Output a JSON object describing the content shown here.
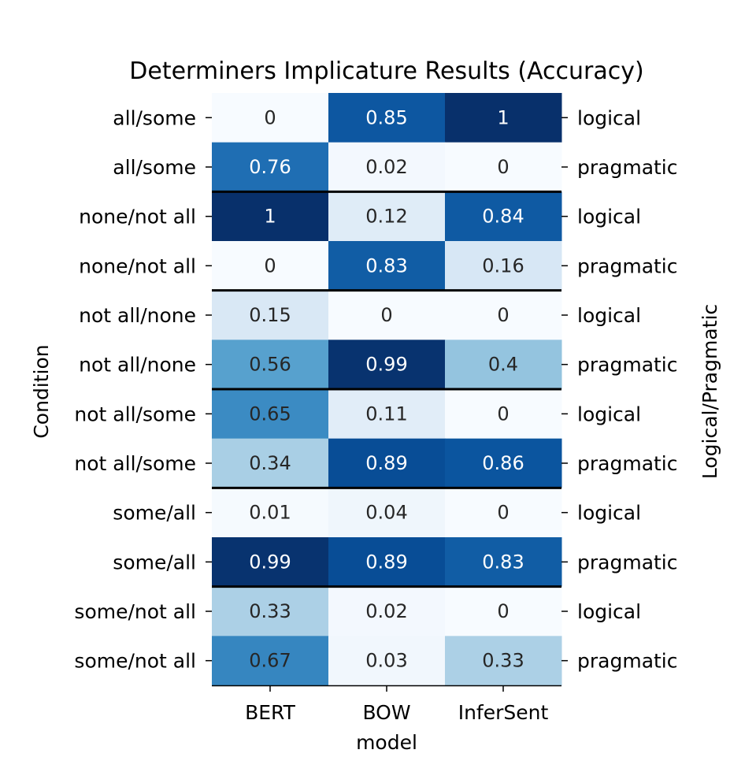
{
  "chart_data": {
    "type": "heatmap",
    "title": "Determiners Implicature Results (Accuracy)",
    "xlabel": "model",
    "ylabel": "Condition",
    "ylabel_right": "Logical/Pragmatic",
    "columns": [
      "BERT",
      "BOW",
      "InferSent"
    ],
    "rows": [
      {
        "condition": "all/some",
        "type": "logical"
      },
      {
        "condition": "all/some",
        "type": "pragmatic"
      },
      {
        "condition": "none/not all",
        "type": "logical"
      },
      {
        "condition": "none/not all",
        "type": "pragmatic"
      },
      {
        "condition": "not all/none",
        "type": "logical"
      },
      {
        "condition": "not all/none",
        "type": "pragmatic"
      },
      {
        "condition": "not all/some",
        "type": "logical"
      },
      {
        "condition": "not all/some",
        "type": "pragmatic"
      },
      {
        "condition": "some/all",
        "type": "logical"
      },
      {
        "condition": "some/all",
        "type": "pragmatic"
      },
      {
        "condition": "some/not all",
        "type": "logical"
      },
      {
        "condition": "some/not all",
        "type": "pragmatic"
      }
    ],
    "values": [
      [
        0,
        0.85,
        1
      ],
      [
        0.76,
        0.02,
        0
      ],
      [
        1,
        0.12,
        0.84
      ],
      [
        0,
        0.83,
        0.16
      ],
      [
        0.15,
        0,
        0
      ],
      [
        0.56,
        0.99,
        0.4
      ],
      [
        0.65,
        0.11,
        0
      ],
      [
        0.34,
        0.89,
        0.86
      ],
      [
        0.01,
        0.04,
        0
      ],
      [
        0.99,
        0.89,
        0.83
      ],
      [
        0.33,
        0.02,
        0
      ],
      [
        0.67,
        0.03,
        0.33
      ]
    ],
    "value_range": [
      0,
      1
    ],
    "colormap": "Blues",
    "colors": {
      "dark_text": "#262626",
      "light_text": "#ffffff",
      "separator": "#000000"
    }
  }
}
